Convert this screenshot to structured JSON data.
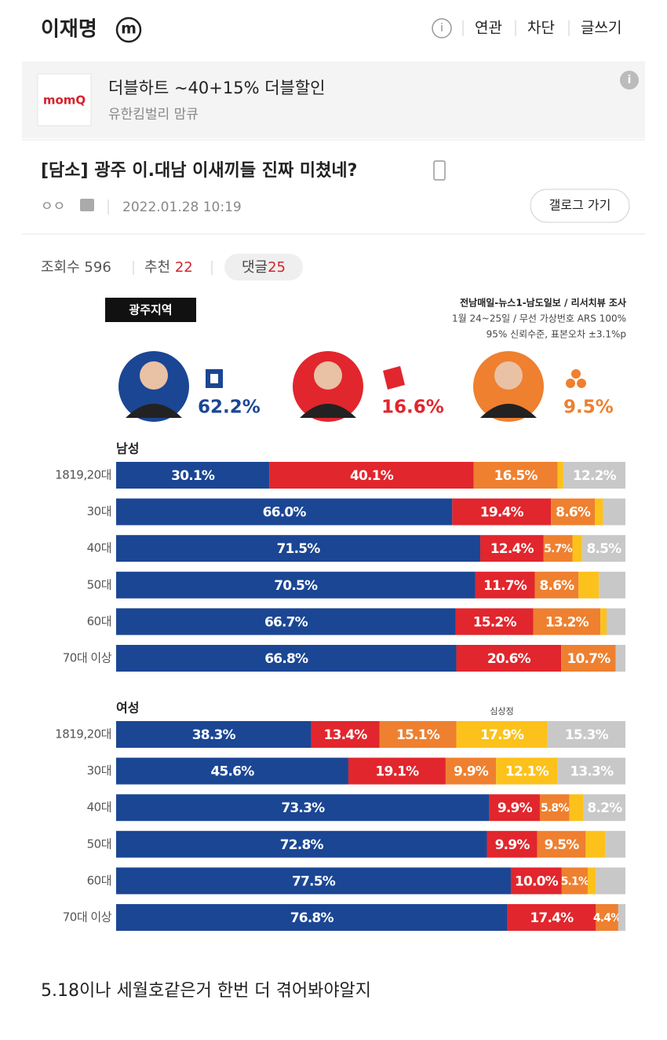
{
  "header": {
    "title": "이재명",
    "badge": "m",
    "links": [
      "연관",
      "차단",
      "글쓰기"
    ]
  },
  "ad": {
    "brand": "momQ",
    "title": "더블하트 ~40+15% 더블할인",
    "subtitle": "유한킴벌리 맘큐"
  },
  "post": {
    "title": "[담소] 광주 이.대남 이새끼들 진짜 미쳤네?",
    "author": "ㅇㅇ",
    "date": "2022.01.28 10:19",
    "gallog_button": "갤로그 가기",
    "stats": {
      "views_label": "조회수",
      "views": 596,
      "recommend_label": "추천",
      "recommend": 22,
      "comments_label": "댓글",
      "comments": 25
    }
  },
  "image": {
    "region": "광주지역",
    "source": [
      "전남매일-뉴스1-남도일보 / 리서치뷰 조사",
      "1월 24~25일 / 무선 가상번호 ARS 100%",
      "95% 신뢰수준, 표본오차 ±3.1%p"
    ],
    "candidates": [
      "62.2%",
      "16.6%",
      "9.5%"
    ]
  },
  "chart_data": [
    {
      "type": "bar",
      "orientation": "horizontal",
      "stacked": true,
      "title": "남성",
      "categories": [
        "1819,20대",
        "30대",
        "40대",
        "50대",
        "60대",
        "70대 이상"
      ],
      "series": [
        {
          "color": "#1b4694",
          "values": [
            30.1,
            66.0,
            71.5,
            70.5,
            66.7,
            66.8
          ],
          "value_labels": [
            "30.1%",
            "66.0%",
            "71.5%",
            "70.5%",
            "66.7%",
            "66.8%"
          ]
        },
        {
          "color": "#e1262d",
          "values": [
            40.1,
            19.4,
            12.4,
            11.7,
            15.2,
            20.6
          ],
          "value_labels": [
            "40.1%",
            "19.4%",
            "12.4%",
            "11.7%",
            "15.2%",
            "20.6%"
          ]
        },
        {
          "color": "#ee8030",
          "values": [
            16.5,
            8.6,
            5.7,
            8.6,
            13.2,
            10.7
          ],
          "value_labels": [
            "16.5%",
            "8.6%",
            "5.7%",
            "8.6%",
            "13.2%",
            "10.7%"
          ]
        },
        {
          "color": "#fcc21b",
          "values": [
            1.1,
            1.6,
            1.9,
            4.0,
            1.2,
            0
          ],
          "value_labels": [
            null,
            null,
            null,
            null,
            null,
            null
          ]
        },
        {
          "color": "#c8c8c8",
          "values": [
            12.2,
            4.4,
            8.5,
            5.2,
            3.7,
            1.9
          ],
          "value_labels": [
            "12.2%",
            null,
            "8.5%",
            null,
            null,
            null
          ]
        }
      ]
    },
    {
      "type": "bar",
      "orientation": "horizontal",
      "stacked": true,
      "title": "여성",
      "categories": [
        "1819,20대",
        "30대",
        "40대",
        "50대",
        "60대",
        "70대 이상"
      ],
      "annotations": [
        {
          "text": "심상정"
        }
      ],
      "series": [
        {
          "color": "#1b4694",
          "values": [
            38.3,
            45.6,
            73.3,
            72.8,
            77.5,
            76.8
          ],
          "value_labels": [
            "38.3%",
            "45.6%",
            "73.3%",
            "72.8%",
            "77.5%",
            "76.8%"
          ]
        },
        {
          "color": "#e1262d",
          "values": [
            13.4,
            19.1,
            9.9,
            9.9,
            10.0,
            17.4
          ],
          "value_labels": [
            "13.4%",
            "19.1%",
            "9.9%",
            "9.9%",
            "10.0%",
            "17.4%"
          ]
        },
        {
          "color": "#ee8030",
          "values": [
            15.1,
            9.9,
            5.8,
            9.5,
            5.1,
            4.4
          ],
          "value_labels": [
            "15.1%",
            "9.9%",
            "5.8%",
            "9.5%",
            "5.1%",
            "4.4%"
          ]
        },
        {
          "color": "#fcc21b",
          "values": [
            17.9,
            12.1,
            2.8,
            3.8,
            1.6,
            0
          ],
          "value_labels": [
            "17.9%",
            "12.1%",
            null,
            null,
            null,
            null
          ]
        },
        {
          "color": "#c8c8c8",
          "values": [
            15.3,
            13.3,
            8.2,
            4.0,
            5.8,
            1.4
          ],
          "value_labels": [
            "15.3%",
            "13.3%",
            "8.2%",
            null,
            null,
            null
          ]
        }
      ]
    }
  ],
  "body": {
    "text": "5.18이나 세월호같은거 한번 더 겪어봐야알지"
  }
}
